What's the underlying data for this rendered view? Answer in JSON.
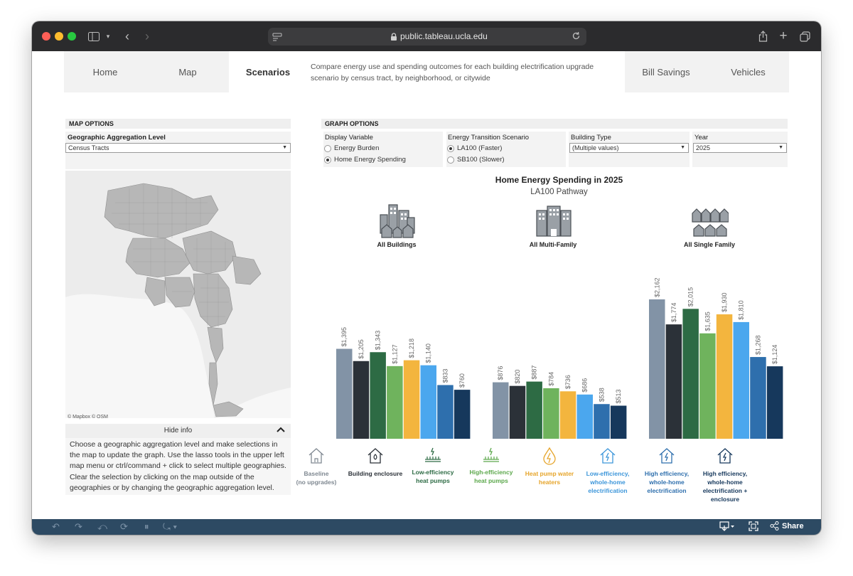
{
  "browser": {
    "url": "public.tableau.ucla.edu"
  },
  "tabs": [
    {
      "label": "Home"
    },
    {
      "label": "Map"
    },
    {
      "label": "Scenarios"
    },
    {
      "label": "Bill Savings"
    },
    {
      "label": "Vehicles"
    }
  ],
  "tab_description": "Compare energy use and spending outcomes for each building electrification upgrade scenario by census tract, by neighborhood, or citywide",
  "map_options": {
    "header": "MAP OPTIONS",
    "aggregation_label": "Geographic Aggregation Level",
    "aggregation_value": "Census Tracts",
    "credit": "© Mapbox  © OSM",
    "hide_info": "Hide info",
    "info_text": "Choose a geographic aggregation level and make selections in the map to update the graph. Use the lasso tools in the upper left map menu or ctrl/command + click to select multiple geographies. Clear the selection by clicking on the map outside of the geographies or by changing the geographic aggregation level."
  },
  "graph_options": {
    "header": "GRAPH OPTIONS",
    "display_variable": {
      "label": "Display Variable",
      "options": [
        "Energy Burden",
        "Home Energy Spending"
      ],
      "selected": 1
    },
    "scenario": {
      "label": "Energy Transition Scenario",
      "options": [
        "LA100 (Faster)",
        "SB100 (Slower)"
      ],
      "selected": 0
    },
    "building_type": {
      "label": "Building Type",
      "value": "(Multiple values)"
    },
    "year": {
      "label": "Year",
      "value": "2025"
    }
  },
  "chart": {
    "title": "Home Energy Spending in 2025",
    "subtitle": "LA100 Pathway",
    "groups": [
      "All Buildings",
      "All Multi-Family",
      "All Single Family"
    ]
  },
  "chart_data": {
    "type": "bar",
    "title": "Home Energy Spending in 2025",
    "subtitle": "LA100 Pathway",
    "categories": [
      "All Buildings",
      "All Multi-Family",
      "All Single Family"
    ],
    "series": [
      {
        "name": "Baseline (no upgrades)",
        "values": [
          1395,
          876,
          2162
        ],
        "labels": [
          "$1,395",
          "$876",
          "$2,162"
        ],
        "color": "#8293a6"
      },
      {
        "name": "Building enclosure",
        "values": [
          1205,
          820,
          1774
        ],
        "labels": [
          "$1,205",
          "$820",
          "$1,774"
        ],
        "color": "#2b3138"
      },
      {
        "name": "Low-efficiency heat pumps",
        "values": [
          1343,
          887,
          2015
        ],
        "labels": [
          "$1,343",
          "$887",
          "$2,015"
        ],
        "color": "#2d6b44"
      },
      {
        "name": "High-efficiency heat pumps",
        "values": [
          1127,
          784,
          1635
        ],
        "labels": [
          "$1,127",
          "$784",
          "$1,635"
        ],
        "color": "#6fb35d"
      },
      {
        "name": "Heat pump water heaters",
        "values": [
          1218,
          736,
          1930
        ],
        "labels": [
          "$1,218",
          "$736",
          "$1,930"
        ],
        "color": "#f3b53e"
      },
      {
        "name": "Low-efficiency, whole-home electrification",
        "values": [
          1140,
          686,
          1810
        ],
        "labels": [
          "$1,140",
          "$686",
          "$1,810"
        ],
        "color": "#4ba7ee"
      },
      {
        "name": "High efficiency, whole-home electrification",
        "values": [
          833,
          538,
          1268
        ],
        "labels": [
          "$833",
          "$538",
          "$1,268"
        ],
        "color": "#2e6fad"
      },
      {
        "name": "High efficiency, whole-home electrification + enclosure",
        "values": [
          760,
          513,
          1124
        ],
        "labels": [
          "$760",
          "$513",
          "$1,124"
        ],
        "color": "#16385c"
      }
    ],
    "ylim": [
      0,
      2162
    ],
    "grid": false,
    "legend_placement": "bottom"
  },
  "legend": [
    {
      "line1": "Baseline",
      "line2": "(no upgrades)",
      "color": "#7f8891",
      "icon": "house-icon"
    },
    {
      "line1": "Building enclosure",
      "line2": "",
      "color": "#2b3138",
      "icon": "house-flame-icon"
    },
    {
      "line1": "Low-efficiency",
      "line2": "heat pumps",
      "color": "#2d6b44",
      "icon": "heat-pump-icon"
    },
    {
      "line1": "High-efficiency",
      "line2": "heat pumps",
      "color": "#5ca84c",
      "icon": "heat-pump-icon"
    },
    {
      "line1": "Heat pump water",
      "line2": "heaters",
      "color": "#e6a52b",
      "icon": "water-drop-icon"
    },
    {
      "line1": "Low-efficiency,",
      "line2": "whole-home",
      "line3": "electrification",
      "color": "#3c96da",
      "icon": "bolt-house-icon"
    },
    {
      "line1": "High efficiency,",
      "line2": "whole-home",
      "line3": "electrification",
      "color": "#2e6fad",
      "icon": "bolt-house-icon"
    },
    {
      "line1": "High efficiency,",
      "line2": "whole-home",
      "line3": "electrification +",
      "line4": "enclosure",
      "color": "#16385c",
      "icon": "bolt-house-icon"
    }
  ],
  "toolbar": {
    "share": "Share"
  }
}
